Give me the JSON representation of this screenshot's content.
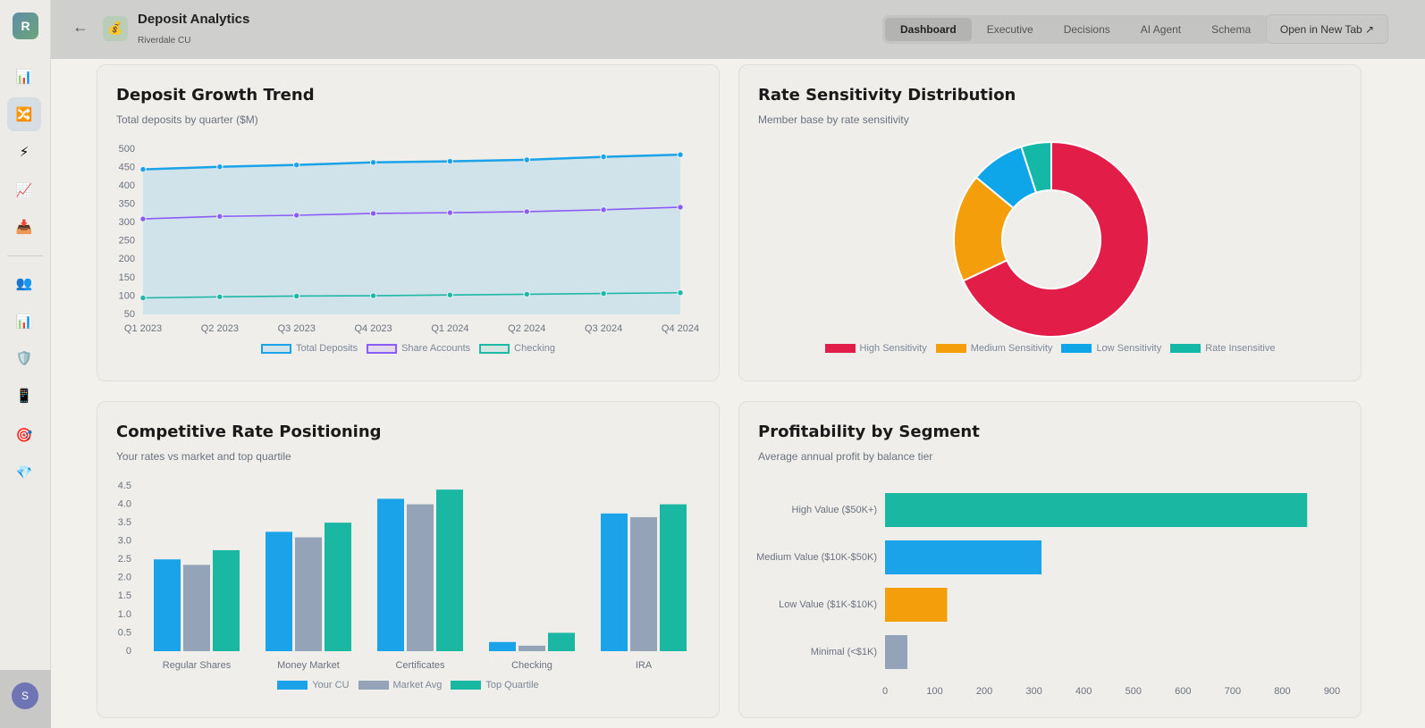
{
  "sidebar": {
    "logo": "R",
    "icons": [
      "📊",
      "🔀",
      "⚡",
      "📈",
      "📥",
      "👥",
      "📊",
      "🛡️",
      "📱",
      "🎯",
      "💎"
    ],
    "active": 1,
    "user": "S"
  },
  "header": {
    "icon": "💰",
    "title": "Deposit Analytics",
    "subtitle": "Riverdale CU",
    "tabs": [
      "Dashboard",
      "Executive",
      "Decisions",
      "AI Agent",
      "Schema"
    ],
    "active_tab": 0,
    "button": "Open in New Tab ↗"
  },
  "chart_data": [
    {
      "type": "line",
      "title": "Deposit Growth Trend",
      "subtitle": "Total deposits by quarter ($M)",
      "categories": [
        "Q1 2023",
        "Q2 2023",
        "Q3 2023",
        "Q4 2023",
        "Q1 2024",
        "Q2 2024",
        "Q3 2024",
        "Q4 2024"
      ],
      "series": [
        {
          "name": "Total Deposits",
          "color": "#1aa3e8",
          "area": true,
          "values": [
            445,
            452,
            457,
            464,
            467,
            471,
            479,
            485
          ]
        },
        {
          "name": "Share Accounts",
          "color": "#8b5cf6",
          "values": [
            310,
            317,
            320,
            325,
            327,
            330,
            335,
            342
          ]
        },
        {
          "name": "Checking",
          "color": "#1eb8a6",
          "values": [
            95,
            98,
            100,
            101,
            103,
            105,
            107,
            109
          ]
        }
      ],
      "ylim": [
        50,
        500
      ],
      "yticks": [
        50,
        100,
        150,
        200,
        250,
        300,
        350,
        400,
        450,
        500
      ],
      "grid": false
    },
    {
      "type": "pie",
      "title": "Rate Sensitivity Distribution",
      "subtitle": "Member base by rate sensitivity",
      "categories": [
        "High Sensitivity",
        "Medium Sensitivity",
        "Low Sensitivity",
        "Rate Insensitive"
      ],
      "values": [
        68,
        18,
        9,
        5
      ],
      "colors": [
        "#e11d48",
        "#f59e0b",
        "#0ea5e9",
        "#14b8a6"
      ],
      "donut": true
    },
    {
      "type": "bar",
      "title": "Competitive Rate Positioning",
      "subtitle": "Your rates vs market and top quartile",
      "categories": [
        "Regular Shares",
        "Money Market",
        "Certificates",
        "Checking",
        "IRA"
      ],
      "series": [
        {
          "name": "Your CU",
          "color": "#1aa3e8",
          "values": [
            2.5,
            3.25,
            4.15,
            0.25,
            3.75
          ]
        },
        {
          "name": "Market Avg",
          "color": "#94a3b8",
          "values": [
            2.35,
            3.1,
            4.0,
            0.15,
            3.65
          ]
        },
        {
          "name": "Top Quartile",
          "color": "#1ab8a2",
          "values": [
            2.75,
            3.5,
            4.4,
            0.5,
            4.0
          ]
        }
      ],
      "ylim": [
        0,
        4.5
      ],
      "yticks": [
        0,
        0.5,
        {
          "value": 1,
          "label": "1.0"
        },
        1.5,
        {
          "value": 2,
          "label": "2.0"
        },
        2.5,
        {
          "value": 3,
          "label": "3.0"
        },
        3.5,
        {
          "value": 4,
          "label": "4.0"
        },
        4.5
      ],
      "grid": false
    },
    {
      "type": "barh",
      "title": "Profitability by Segment",
      "subtitle": "Average annual profit by balance tier",
      "categories": [
        "High Value ($50K+)",
        "Medium Value ($10K-$50K)",
        "Low Value ($1K-$10K)",
        "Minimal (<$1K)"
      ],
      "values": [
        850,
        315,
        125,
        45
      ],
      "colors": [
        "#1ab8a2",
        "#1aa3e8",
        "#f59e0b",
        "#94a3b8"
      ],
      "xlim": [
        0,
        900
      ],
      "xticks": [
        0,
        100,
        200,
        300,
        400,
        500,
        600,
        700,
        800,
        900
      ],
      "grid": false
    }
  ]
}
